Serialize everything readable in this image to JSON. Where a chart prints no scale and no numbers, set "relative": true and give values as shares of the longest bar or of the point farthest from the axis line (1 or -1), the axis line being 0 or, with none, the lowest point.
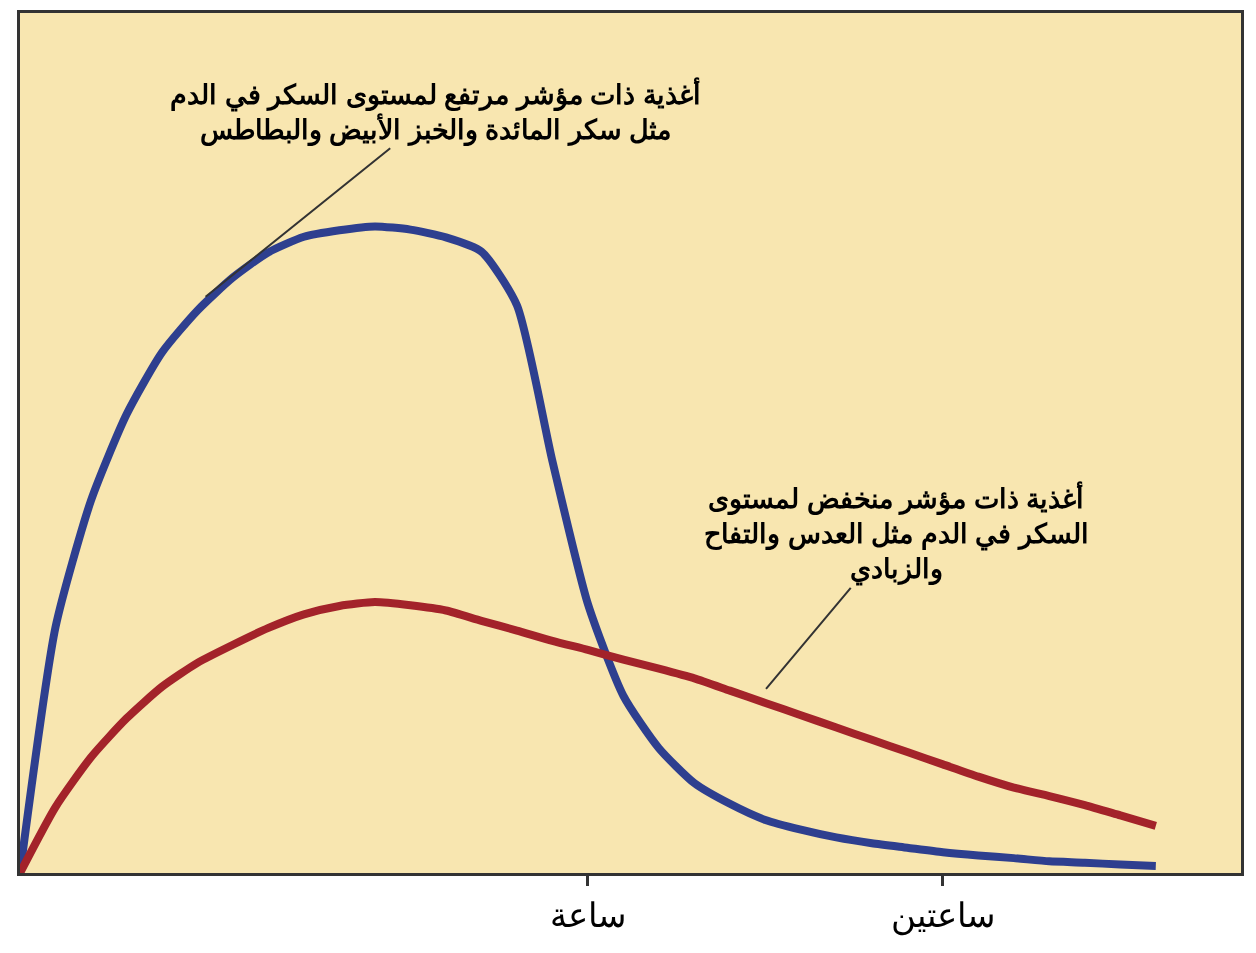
{
  "chart_data": {
    "type": "line",
    "relative": true,
    "categories": [
      null,
      null,
      null,
      null,
      null,
      null,
      null,
      null,
      null,
      null,
      null,
      null,
      null,
      null,
      null,
      null,
      "ساعة",
      null,
      null,
      null,
      null,
      null,
      null,
      null,
      null,
      null,
      "ساعتين",
      null,
      null,
      null,
      null,
      null,
      null
    ],
    "series": [
      {
        "color": "#2e3f8f",
        "values": [
          0,
          0.38,
          0.576,
          0.709,
          0.805,
          0.87,
          0.921,
          0.96,
          0.984,
          0.994,
          1.0,
          0.995,
          0.983,
          0.961,
          0.878,
          0.637,
          0.416,
          0.274,
          0.193,
          0.139,
          0.107,
          0.082,
          0.067,
          0.055,
          0.046,
          0.039,
          0.032,
          0.027,
          0.023,
          0.018,
          0.016,
          0.013,
          0.011
        ]
      },
      {
        "color": "#a3232a",
        "values": [
          0,
          0.102,
          0.179,
          0.239,
          0.288,
          0.325,
          0.353,
          0.379,
          0.4,
          0.413,
          0.419,
          0.414,
          0.406,
          0.39,
          0.375,
          0.359,
          0.345,
          0.33,
          0.316,
          0.301,
          0.282,
          0.263,
          0.244,
          0.225,
          0.206,
          0.187,
          0.168,
          0.149,
          0.132,
          0.119,
          0.105,
          0.089,
          0.073
        ]
      }
    ],
    "annotations": [
      "أغذية ذات مؤشر مرتفع لمستوى السكر في الدم\nمثل سكر المائدة والخبز الأبيض والبطاطس",
      "أغذية ذات مؤشر منخفض لمستوى\nالسكر في الدم مثل العدس والتفاح\nوالزبادي"
    ],
    "line_style": "solid",
    "marker": "none"
  }
}
